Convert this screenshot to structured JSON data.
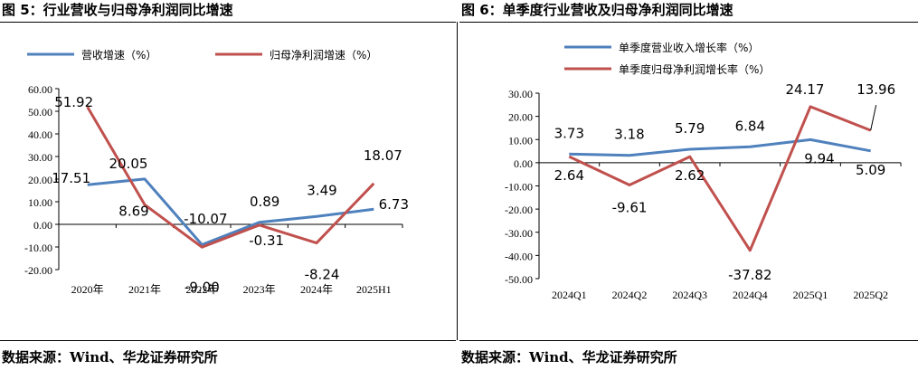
{
  "panels": [
    {
      "title": "图 5：行业营收与归母净利润同比增速",
      "source": "数据来源：Wind、华龙证券研究所"
    },
    {
      "title": "图 6：单季度行业营收及归母净利润同比增速",
      "source": "数据来源：Wind、华龙证券研究所"
    }
  ],
  "colors": {
    "revenue": "#4F81BD",
    "profit": "#C0504D"
  },
  "chart_data": [
    {
      "type": "line",
      "categories": [
        "2020年",
        "2021年",
        "2022年",
        "2023年",
        "2024年",
        "2025H1"
      ],
      "series": [
        {
          "name": "营收增速（%）",
          "values": [
            17.51,
            20.05,
            -9.0,
            0.89,
            3.49,
            6.73
          ]
        },
        {
          "name": "归母净利润增速（%）",
          "values": [
            51.92,
            8.69,
            -10.07,
            -0.31,
            -8.24,
            18.07
          ]
        }
      ],
      "tick_labels": [
        "60.00",
        "50.00",
        "40.00",
        "30.00",
        "20.00",
        "10.00",
        "0.00",
        "-10.00",
        "-20.00"
      ],
      "data_labels": [
        [
          "17.51",
          "20.05",
          "-9.00",
          "0.89",
          "3.49",
          "6.73"
        ],
        [
          "51.92",
          "8.69",
          "-10.07",
          "-0.31",
          "-8.24",
          "18.07"
        ]
      ],
      "ylim": [
        -20,
        60
      ],
      "grid": false,
      "legend": "top"
    },
    {
      "type": "line",
      "categories": [
        "2024Q1",
        "2024Q2",
        "2024Q3",
        "2024Q4",
        "2025Q1",
        "2025Q2"
      ],
      "series": [
        {
          "name": "单季度营业收入增长率（%）",
          "values": [
            3.73,
            3.18,
            5.79,
            6.84,
            9.94,
            5.09
          ]
        },
        {
          "name": "单季度归母净利润增长率（%）",
          "values": [
            2.64,
            -9.61,
            2.62,
            -37.82,
            24.17,
            13.96
          ]
        }
      ],
      "tick_labels": [
        "30.00",
        "20.00",
        "10.00",
        "0.00",
        "-10.00",
        "-20.00",
        "-30.00",
        "-40.00",
        "-50.00"
      ],
      "data_labels": [
        [
          "3.73",
          "3.18",
          "5.79",
          "6.84",
          "9.94",
          "5.09"
        ],
        [
          "2.64",
          "-9.61",
          "2.62",
          "-37.82",
          "24.17",
          "13.96"
        ]
      ],
      "ylim": [
        -50,
        30
      ],
      "grid": false,
      "legend": "top-left"
    }
  ]
}
